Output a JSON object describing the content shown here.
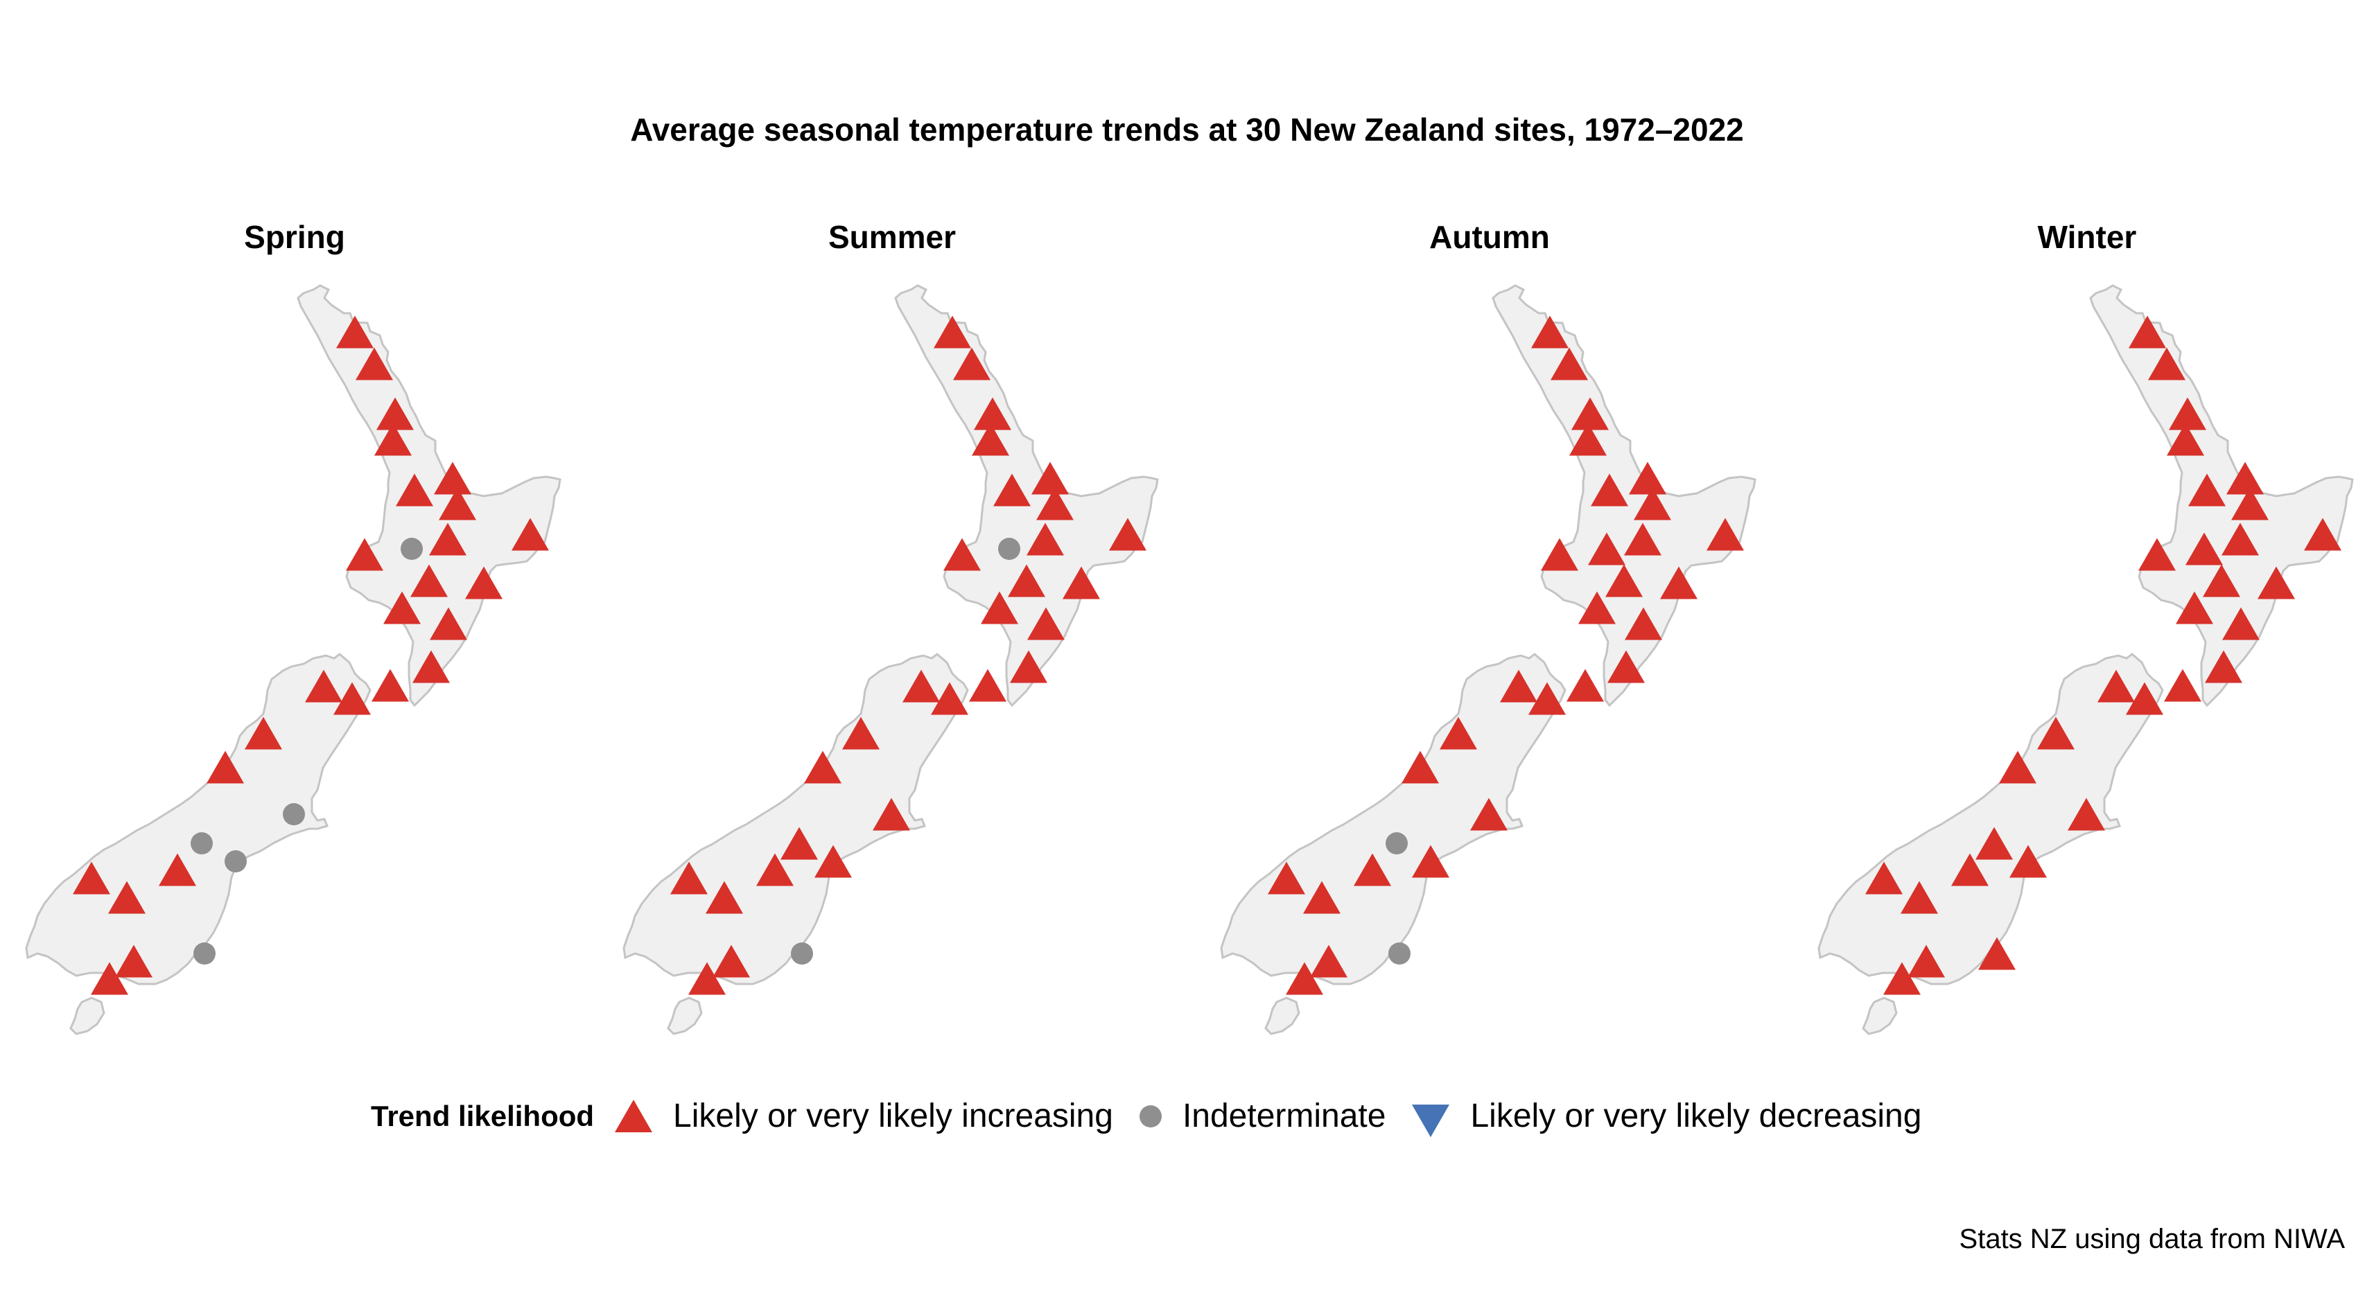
{
  "title": "Average seasonal temperature trends at 30 New Zealand sites, 1972–2022",
  "source": "Stats NZ using data from NIWA",
  "colors": {
    "increasing": "#D7312A",
    "indeterminate": "#8F8F8F",
    "decreasing": "#4573B5",
    "land_fill": "#F0F0F0",
    "land_stroke": "#C4C4C4"
  },
  "legend": {
    "title": "Trend likelihood",
    "items": [
      {
        "key": "increasing",
        "label": "Likely or very likely increasing",
        "marker": "triangle-up"
      },
      {
        "key": "indeterminate",
        "label": "Indeterminate",
        "marker": "circle"
      },
      {
        "key": "decreasing",
        "label": "Likely or very likely decreasing",
        "marker": "triangle-down"
      }
    ]
  },
  "panels": [
    {
      "season": "Spring",
      "offset_x": 0
    },
    {
      "season": "Summer",
      "offset_x": 862
    },
    {
      "season": "Autumn",
      "offset_x": 1724
    },
    {
      "season": "Winter",
      "offset_x": 2586
    }
  ],
  "chart_data": {
    "type": "scatter",
    "title": "Average seasonal temperature trends at 30 New Zealand sites, 1972–2022",
    "facets": [
      "Spring",
      "Summer",
      "Autumn",
      "Winter"
    ],
    "legend_title": "Trend likelihood",
    "categories": [
      "Likely or very likely increasing",
      "Indeterminate",
      "Likely or very likely decreasing"
    ],
    "sites_xy": [
      [
        512,
        479
      ],
      [
        540,
        525
      ],
      [
        570,
        597
      ],
      [
        567,
        634
      ],
      [
        598,
        707
      ],
      [
        653,
        690
      ],
      [
        660,
        727
      ],
      [
        646,
        778
      ],
      [
        594,
        792
      ],
      [
        526,
        800
      ],
      [
        765,
        771
      ],
      [
        619,
        838
      ],
      [
        698,
        841
      ],
      [
        580,
        877
      ],
      [
        647,
        900
      ],
      [
        622,
        962
      ],
      [
        563,
        989
      ],
      [
        467,
        990
      ],
      [
        508,
        1008
      ],
      [
        380,
        1058
      ],
      [
        325,
        1107
      ],
      [
        424,
        1175
      ],
      [
        291,
        1217
      ],
      [
        340,
        1243
      ],
      [
        256,
        1255
      ],
      [
        132,
        1267
      ],
      [
        183,
        1295
      ],
      [
        295,
        1376
      ],
      [
        193,
        1387
      ],
      [
        158,
        1412
      ]
    ],
    "series": [
      {
        "name": "Spring",
        "status": [
          "I",
          "I",
          "I",
          "I",
          "I",
          "I",
          "I",
          "I",
          "N",
          "I",
          "I",
          "I",
          "I",
          "I",
          "I",
          "I",
          "I",
          "I",
          "I",
          "I",
          "I",
          "N",
          "N",
          "N",
          "I",
          "I",
          "I",
          "N",
          "I",
          "I"
        ]
      },
      {
        "name": "Summer",
        "status": [
          "I",
          "I",
          "I",
          "I",
          "I",
          "I",
          "I",
          "I",
          "N",
          "I",
          "I",
          "I",
          "I",
          "I",
          "I",
          "I",
          "I",
          "I",
          "I",
          "I",
          "I",
          "I",
          "I",
          "I",
          "I",
          "I",
          "I",
          "N",
          "I",
          "I"
        ]
      },
      {
        "name": "Autumn",
        "status": [
          "I",
          "I",
          "I",
          "I",
          "I",
          "I",
          "I",
          "I",
          "I",
          "I",
          "I",
          "I",
          "I",
          "I",
          "I",
          "I",
          "I",
          "I",
          "I",
          "I",
          "I",
          "I",
          "N",
          "I",
          "I",
          "I",
          "I",
          "N",
          "I",
          "I"
        ]
      },
      {
        "name": "Winter",
        "status": [
          "I",
          "I",
          "I",
          "I",
          "I",
          "I",
          "I",
          "I",
          "I",
          "I",
          "I",
          "I",
          "I",
          "I",
          "I",
          "I",
          "I",
          "I",
          "I",
          "I",
          "I",
          "I",
          "I",
          "I",
          "I",
          "I",
          "I",
          "I",
          "I",
          "I"
        ]
      }
    ],
    "status_codes": {
      "I": "Likely or very likely increasing",
      "N": "Indeterminate",
      "D": "Likely or very likely decreasing"
    },
    "counts": {
      "Spring": {
        "increasing": 25,
        "indeterminate": 5,
        "decreasing": 0
      },
      "Summer": {
        "increasing": 28,
        "indeterminate": 2,
        "decreasing": 0
      },
      "Autumn": {
        "increasing": 28,
        "indeterminate": 2,
        "decreasing": 0
      },
      "Winter": {
        "increasing": 30,
        "indeterminate": 0,
        "decreasing": 0
      }
    }
  }
}
